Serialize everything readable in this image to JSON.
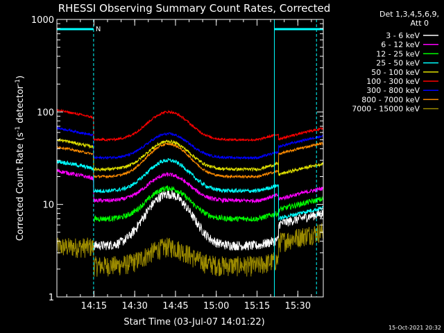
{
  "chart_data": {
    "type": "line",
    "title": "RHESSI Observing Summary Count Rates, Corrected",
    "xlabel": "Start Time (03-Jul-07 14:01:22)",
    "ylabel_main": "Corrected Count Rate (s",
    "ylabel_sup1": "-1",
    "ylabel_mid": " detector",
    "ylabel_sup2": "-1",
    "ylabel_end": ")",
    "yscale": "log",
    "ylim": [
      1,
      1000
    ],
    "xlim_minutes": [
      0,
      98
    ],
    "x_unit": "minutes since 14:01:22",
    "yticks": [
      {
        "v": 1,
        "label": "1"
      },
      {
        "v": 10,
        "label": "10"
      },
      {
        "v": 100,
        "label": "100"
      },
      {
        "v": 1000,
        "label": "1000"
      }
    ],
    "xticks": [
      {
        "v": 13.63,
        "label": "14:15"
      },
      {
        "v": 28.63,
        "label": "14:30"
      },
      {
        "v": 43.63,
        "label": "14:45"
      },
      {
        "v": 58.63,
        "label": "15:00"
      },
      {
        "v": 73.63,
        "label": "15:15"
      },
      {
        "v": 88.63,
        "label": "15:30"
      }
    ],
    "legend": {
      "header1": "Det 1,3,4,5,6,9,",
      "header2": "Att 0",
      "position": "right"
    },
    "series": [
      {
        "name": "3 - 6 keV",
        "color": "#ffffff",
        "base": 3.6,
        "peak": 13,
        "endval": 7,
        "noise": 0.12
      },
      {
        "name": "6 - 12 keV",
        "color": "#ff00ff",
        "base": 11,
        "peak": 21,
        "endval": 13,
        "noise": 0.05
      },
      {
        "name": "12 - 25 keV",
        "color": "#00ff00",
        "base": 7,
        "peak": 15,
        "endval": 10,
        "noise": 0.07
      },
      {
        "name": "25 - 50 keV",
        "color": "#00ffff",
        "base": 14,
        "peak": 30,
        "endval": 8,
        "noise": 0.05
      },
      {
        "name": "50 - 100 keV",
        "color": "#e0e000",
        "base": 24,
        "peak": 48,
        "endval": 24,
        "noise": 0.04
      },
      {
        "name": "100 - 300 keV",
        "color": "#ff0000",
        "base": 50,
        "peak": 100,
        "endval": 58,
        "noise": 0.03
      },
      {
        "name": "300 - 800 keV",
        "color": "#0000ff",
        "base": 32,
        "peak": 58,
        "endval": 48,
        "noise": 0.03
      },
      {
        "name": "800 - 7000 keV",
        "color": "#ff8c00",
        "base": 20,
        "peak": 45,
        "endval": 40,
        "noise": 0.03
      },
      {
        "name": "7000 - 15000 keV",
        "color": "#9b8a00",
        "base": 2.2,
        "peak": 3.5,
        "endval": 4.5,
        "noise": 0.25
      }
    ],
    "annotations": {
      "night_bar_label": "N",
      "night_intervals_minutes": [
        [
          0,
          13.5
        ],
        [
          80,
          98
        ]
      ],
      "dashed_lines_minutes": [
        13.5,
        95.5
      ],
      "solid_line_minutes": 80
    }
  },
  "footer": {
    "timestamp": "15-Oct-2021 20:32"
  }
}
